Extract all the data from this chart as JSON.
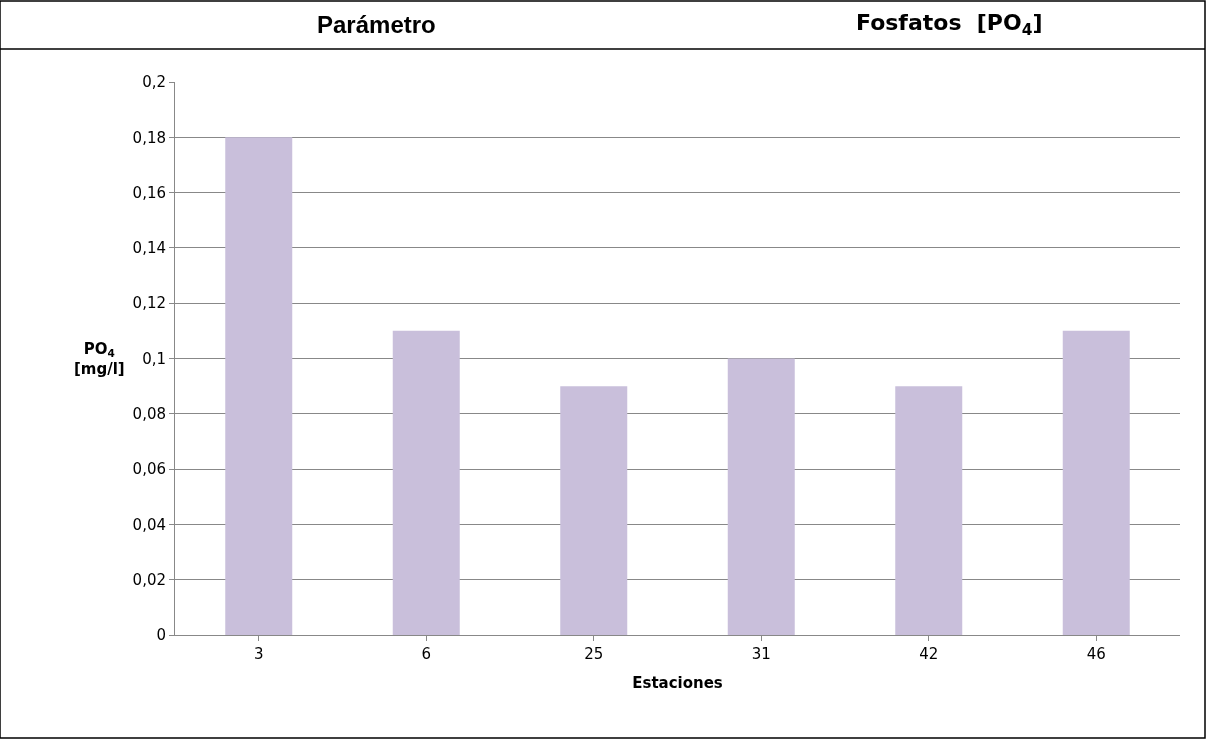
{
  "chart_data": {
    "type": "bar",
    "title": "Parámetro",
    "subtitle": "Fosfatos  [PO$_{4}$]",
    "xlabel": "Estaciones",
    "ylabel": "PO$_{4}$\n[mg/l]",
    "categories": [
      "3",
      "6",
      "25",
      "31",
      "42",
      "46"
    ],
    "values": [
      0.18,
      0.11,
      0.09,
      0.1,
      0.09,
      0.11
    ],
    "color": "#c9bfdb",
    "ylim": [
      0,
      0.2
    ],
    "yticks": [
      0,
      {
        "value": 0.02,
        "label": "0,02"
      },
      {
        "value": 0.04,
        "label": "0,04"
      },
      {
        "value": 0.06,
        "label": "0,06"
      },
      {
        "value": 0.08,
        "label": "0,08"
      },
      {
        "value": 0.1,
        "label": "0,1"
      },
      {
        "value": 0.12,
        "label": "0,12"
      },
      {
        "value": 0.14,
        "label": "0,14"
      },
      {
        "value": 0.16,
        "label": "0,16"
      },
      {
        "value": 0.18,
        "label": "0,18"
      },
      {
        "value": 0.2,
        "label": "0,2"
      }
    ],
    "grid": "y"
  }
}
